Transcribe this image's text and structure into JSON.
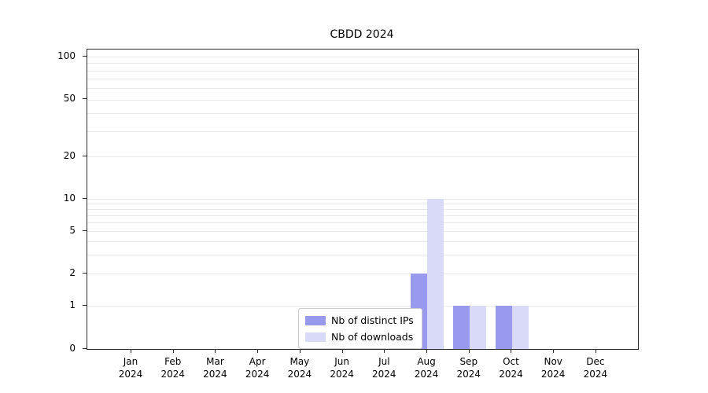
{
  "title": "CBDD 2024",
  "chart_data": {
    "type": "bar",
    "title": "CBDD 2024",
    "categories": [
      "Jan 2024",
      "Feb 2024",
      "Mar 2024",
      "Apr 2024",
      "May 2024",
      "Jun 2024",
      "Jul 2024",
      "Aug 2024",
      "Sep 2024",
      "Oct 2024",
      "Nov 2024",
      "Dec 2024"
    ],
    "series": [
      {
        "name": "Nb of distinct IPs",
        "color": "#9999ee",
        "values": [
          0,
          0,
          0,
          0,
          0,
          0,
          0,
          2,
          1,
          1,
          0,
          0
        ]
      },
      {
        "name": "Nb of downloads",
        "color": "#d9d9f8",
        "values": [
          0,
          0,
          0,
          0,
          0,
          0,
          0,
          10,
          1,
          1,
          0,
          0
        ]
      }
    ],
    "yscale": "symlog",
    "ylim": [
      0,
      110
    ],
    "yticks": [
      0,
      1,
      2,
      5,
      10,
      20,
      50,
      100
    ],
    "minor_yticks": [
      3,
      4,
      6,
      7,
      8,
      9,
      30,
      40,
      60,
      70,
      80,
      90
    ],
    "xlabel": "",
    "ylabel": "",
    "grid": "horizontal",
    "legend_position": "lower center"
  }
}
